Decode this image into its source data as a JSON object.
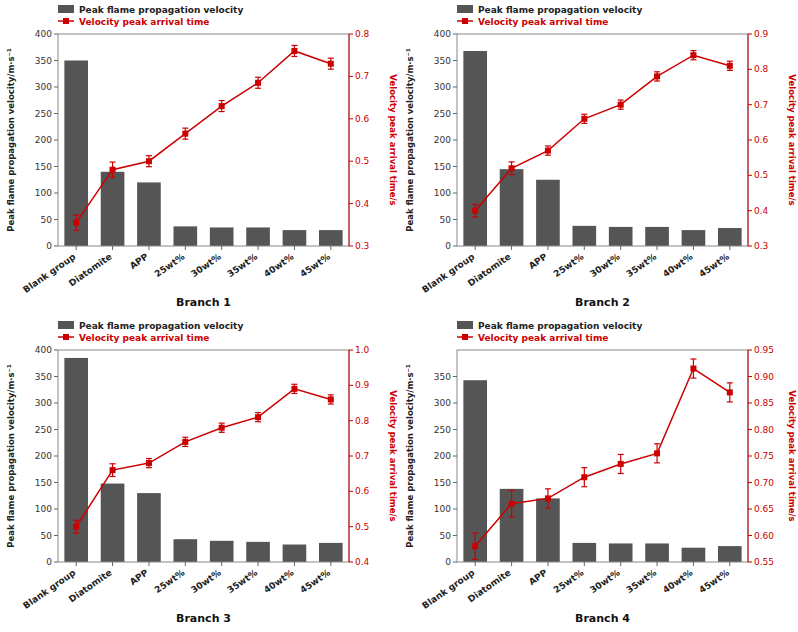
{
  "chart_data": [
    {
      "type": "bar",
      "xlabel": "Branch 1",
      "ylabel": "Peak flame propagation velocity/m·s⁻¹",
      "y2label": "Velocity peak arrival time/s",
      "categories": [
        "Blank group",
        "Diatomite",
        "APP",
        "25wt%",
        "30wt%",
        "35wt%",
        "40wt%",
        "45wt%"
      ],
      "series": [
        {
          "name": "Peak flame propagation velocity",
          "type": "bar",
          "color": "#555555",
          "values": [
            350,
            140,
            120,
            37,
            35,
            35,
            30,
            30
          ]
        },
        {
          "name": "Velocity peak arrival time",
          "type": "line",
          "axis": "y2",
          "color": "#cc0000",
          "marker": "square",
          "values": [
            0.355,
            0.48,
            0.5,
            0.565,
            0.63,
            0.685,
            0.76,
            0.73
          ],
          "errors": [
            0.018,
            0.018,
            0.013,
            0.013,
            0.013,
            0.013,
            0.013,
            0.013
          ]
        }
      ],
      "ylim": [
        0,
        400
      ],
      "yticks": [
        0,
        50,
        100,
        150,
        200,
        250,
        300,
        350,
        400
      ],
      "y2lim": [
        0.3,
        0.8
      ],
      "y2ticks": [
        0.3,
        0.4,
        0.5,
        0.6,
        0.7,
        0.8
      ],
      "grid": false,
      "legend": "top"
    },
    {
      "type": "bar",
      "xlabel": "Branch 2",
      "ylabel": "Peak flame propagation velocity/m·s⁻¹",
      "y2label": "Velocity peak arrival time/s",
      "categories": [
        "Blank group",
        "Diatomite",
        "APP",
        "25wt%",
        "30wt%",
        "35wt%",
        "40wt%",
        "45wt%"
      ],
      "series": [
        {
          "name": "Peak flame propagation velocity",
          "type": "bar",
          "color": "#555555",
          "values": [
            368,
            145,
            125,
            38,
            36,
            36,
            30,
            34
          ]
        },
        {
          "name": "Velocity peak arrival time",
          "type": "line",
          "axis": "y2",
          "color": "#cc0000",
          "marker": "square",
          "values": [
            0.4,
            0.52,
            0.57,
            0.66,
            0.7,
            0.78,
            0.84,
            0.81
          ],
          "errors": [
            0.018,
            0.018,
            0.013,
            0.013,
            0.013,
            0.013,
            0.013,
            0.013
          ]
        }
      ],
      "ylim": [
        0,
        400
      ],
      "yticks": [
        0,
        50,
        100,
        150,
        200,
        250,
        300,
        350,
        400
      ],
      "y2lim": [
        0.3,
        0.9
      ],
      "y2ticks": [
        0.3,
        0.4,
        0.5,
        0.6,
        0.7,
        0.8,
        0.9
      ],
      "grid": false,
      "legend": "top"
    },
    {
      "type": "bar",
      "xlabel": "Branch 3",
      "ylabel": "Peak flame propagation velocity/m·s⁻¹",
      "y2label": "Velocity peak arrival time/s",
      "categories": [
        "Blank group",
        "Diatomite",
        "APP",
        "25wt%",
        "30wt%",
        "35wt%",
        "40wt%",
        "45wt%"
      ],
      "series": [
        {
          "name": "Peak flame propagation velocity",
          "type": "bar",
          "color": "#555555",
          "values": [
            385,
            148,
            130,
            43,
            40,
            38,
            33,
            36
          ]
        },
        {
          "name": "Velocity peak arrival time",
          "type": "line",
          "axis": "y2",
          "color": "#cc0000",
          "marker": "square",
          "values": [
            0.5,
            0.66,
            0.68,
            0.74,
            0.78,
            0.81,
            0.89,
            0.86
          ],
          "errors": [
            0.018,
            0.018,
            0.013,
            0.013,
            0.013,
            0.013,
            0.013,
            0.013
          ]
        }
      ],
      "ylim": [
        0,
        400
      ],
      "yticks": [
        0,
        50,
        100,
        150,
        200,
        250,
        300,
        350,
        400
      ],
      "y2lim": [
        0.4,
        1.0
      ],
      "y2ticks": [
        0.4,
        0.5,
        0.6,
        0.7,
        0.8,
        0.9,
        {
          "value": 1.0,
          "label": "1.0"
        }
      ],
      "grid": false,
      "legend": "top"
    },
    {
      "type": "bar",
      "xlabel": "Branch 4",
      "ylabel": "Peak flame propagation velocity/m·s⁻¹",
      "y2label": "Velocity peak arrival time/s",
      "categories": [
        "Blank group",
        "Diatomite",
        "APP",
        "25wt%",
        "30wt%",
        "35wt%",
        "40wt%",
        "45wt%"
      ],
      "series": [
        {
          "name": "Peak flame propagation velocity",
          "type": "bar",
          "color": "#555555",
          "values": [
            343,
            138,
            120,
            36,
            35,
            35,
            27,
            30
          ]
        },
        {
          "name": "Velocity peak arrival time",
          "type": "line",
          "axis": "y2",
          "color": "#cc0000",
          "marker": "square",
          "values": [
            0.58,
            0.66,
            0.67,
            0.71,
            0.735,
            0.755,
            0.915,
            0.87
          ],
          "errors": [
            0.025,
            0.025,
            0.018,
            0.018,
            0.018,
            0.018,
            0.018,
            0.018
          ]
        }
      ],
      "ylim": [
        0,
        400
      ],
      "yticks": [
        0,
        50,
        100,
        150,
        200,
        250,
        300,
        350
      ],
      "y2lim": [
        0.55,
        0.95
      ],
      "y2ticks": [
        0.55,
        {
          "value": 0.6,
          "label": "0.60"
        },
        0.65,
        {
          "value": 0.7,
          "label": "0.70"
        },
        0.75,
        {
          "value": 0.8,
          "label": "0.80"
        },
        0.85,
        {
          "value": 0.9,
          "label": "0.90"
        },
        0.95
      ],
      "grid": false,
      "legend": "top"
    }
  ]
}
